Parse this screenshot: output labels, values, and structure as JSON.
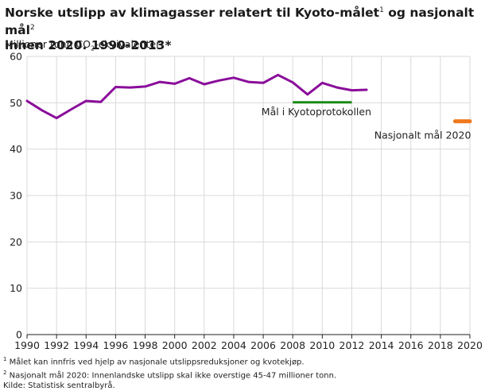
{
  "title": {
    "part1": "Norske utslipp av klimagasser relatert til Kyoto-målet",
    "sup1": "1",
    "part2": " og nasjonalt mål",
    "sup2": "2",
    "line2": "innen 2020. 1990-2013*"
  },
  "ylabel": {
    "pre": "Millioner tonn CO",
    "sub": "2",
    "post": "-ekvivalenter"
  },
  "footnotes": {
    "n1_mark": "1",
    "n1": " Målet kan innfris ved hjelp av nasjonale utslippsreduksjoner og kvotekjøp.",
    "n2_mark": "2",
    "n2": " Nasjonalt mål 2020: Innenlandske utslipp skal ikke overstige 45-47 millioner tonn.",
    "source": "Kilde: Statistisk sentralbyrå."
  },
  "colors": {
    "emissions": "#8a0d9a",
    "kyoto": "#1a8a17",
    "national": "#f07a1d",
    "grid": "#d9d9d9",
    "axis": "#222222"
  },
  "chart_data": {
    "type": "line",
    "xlabel": "",
    "ylabel": "Millioner tonn CO2-ekvivalenter",
    "xlim": [
      1990,
      2020
    ],
    "ylim": [
      0,
      60
    ],
    "x_ticks": [
      1990,
      1992,
      1994,
      1996,
      1998,
      2000,
      2002,
      2004,
      2006,
      2008,
      2010,
      2012,
      2014,
      2016,
      2018,
      2020
    ],
    "y_ticks": [
      0,
      10,
      20,
      30,
      40,
      50,
      60
    ],
    "grid": true,
    "series": [
      {
        "name": "Utslipp",
        "x": [
          1990,
          1991,
          1992,
          1993,
          1994,
          1995,
          1996,
          1997,
          1998,
          1999,
          2000,
          2001,
          2002,
          2003,
          2004,
          2005,
          2006,
          2007,
          2008,
          2009,
          2010,
          2011,
          2012,
          2013
        ],
        "values": [
          50.4,
          48.4,
          46.7,
          48.6,
          50.4,
          50.2,
          53.4,
          53.3,
          53.5,
          54.5,
          54.1,
          55.3,
          54.0,
          54.8,
          55.4,
          54.5,
          54.3,
          56.0,
          54.4,
          51.8,
          54.3,
          53.3,
          52.7,
          52.8
        ]
      }
    ],
    "annotations": [
      {
        "label": "Mål i Kyotoprotokollen",
        "x_start": 2008,
        "x_end": 2012,
        "value": 50.1
      },
      {
        "label": "Nasjonalt mål 2020",
        "x_start": 2019,
        "x_end": 2020,
        "value": 46.0
      }
    ]
  }
}
